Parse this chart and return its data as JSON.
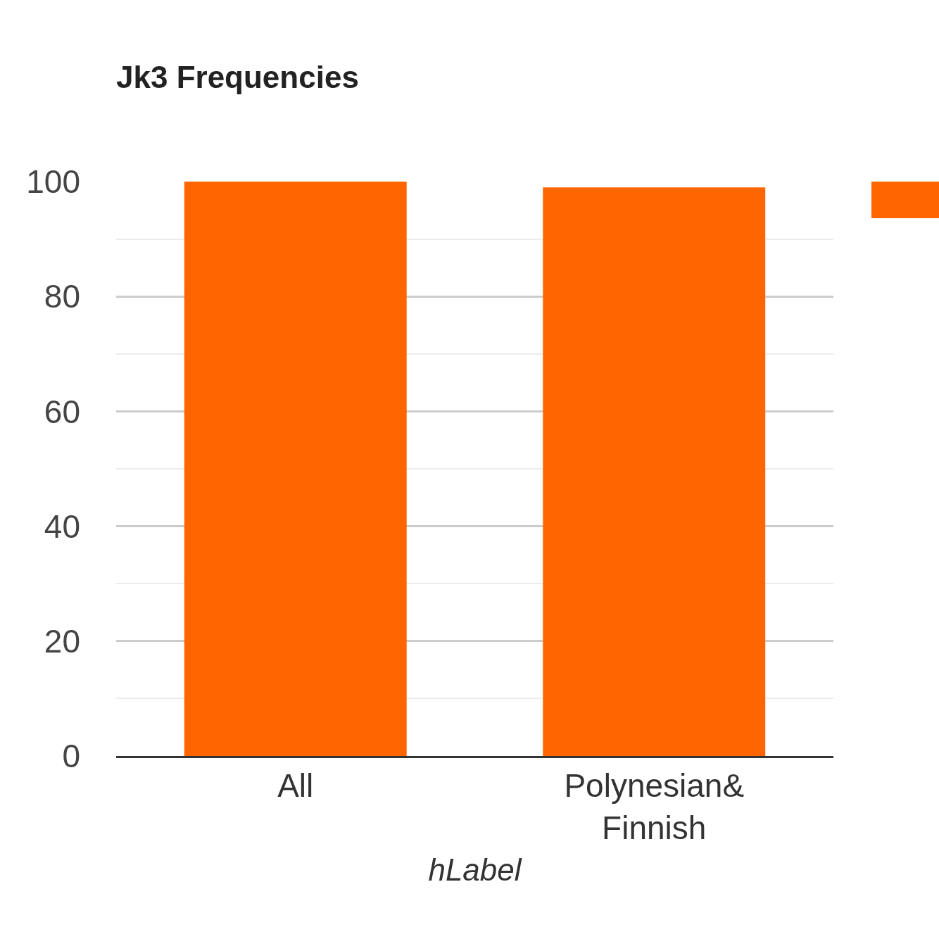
{
  "chart_data": {
    "type": "bar",
    "title": "Jk3 Frequencies",
    "xlabel": "hLabel",
    "categories": [
      "All",
      "Polynesian& Finnish"
    ],
    "series": [
      {
        "color": "#ff6600",
        "values": [
          100,
          99
        ]
      }
    ],
    "ylim": [
      0,
      100
    ],
    "yticks": [
      0,
      20,
      40,
      60,
      80,
      100
    ],
    "grid": "y"
  }
}
